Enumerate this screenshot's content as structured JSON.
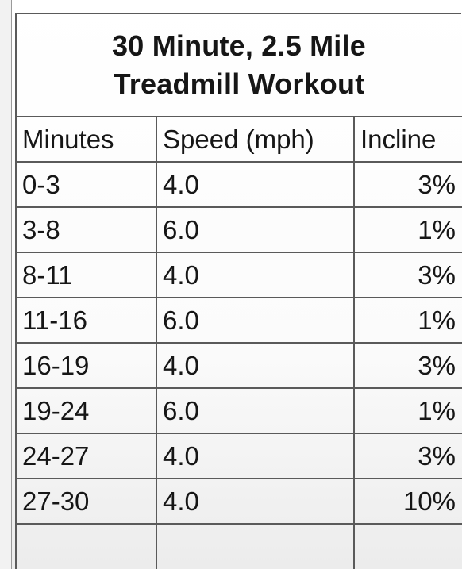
{
  "title": {
    "line1": "30 Minute, 2.5 Mile",
    "line2": "Treadmill Workout"
  },
  "table": {
    "headers": [
      "Minutes",
      "Speed (mph)",
      "Incline"
    ],
    "rows": [
      [
        "0-3",
        "4.0",
        "3%"
      ],
      [
        "3-8",
        "6.0",
        "1%"
      ],
      [
        "8-11",
        "4.0",
        "3%"
      ],
      [
        "11-16",
        "6.0",
        "1%"
      ],
      [
        "16-19",
        "4.0",
        "3%"
      ],
      [
        "19-24",
        "6.0",
        "1%"
      ],
      [
        "24-27",
        "4.0",
        "3%"
      ],
      [
        "27-30",
        "4.0",
        "10%"
      ]
    ]
  },
  "colors": {
    "gridline": "#5a5a5a",
    "text": "#161616"
  }
}
